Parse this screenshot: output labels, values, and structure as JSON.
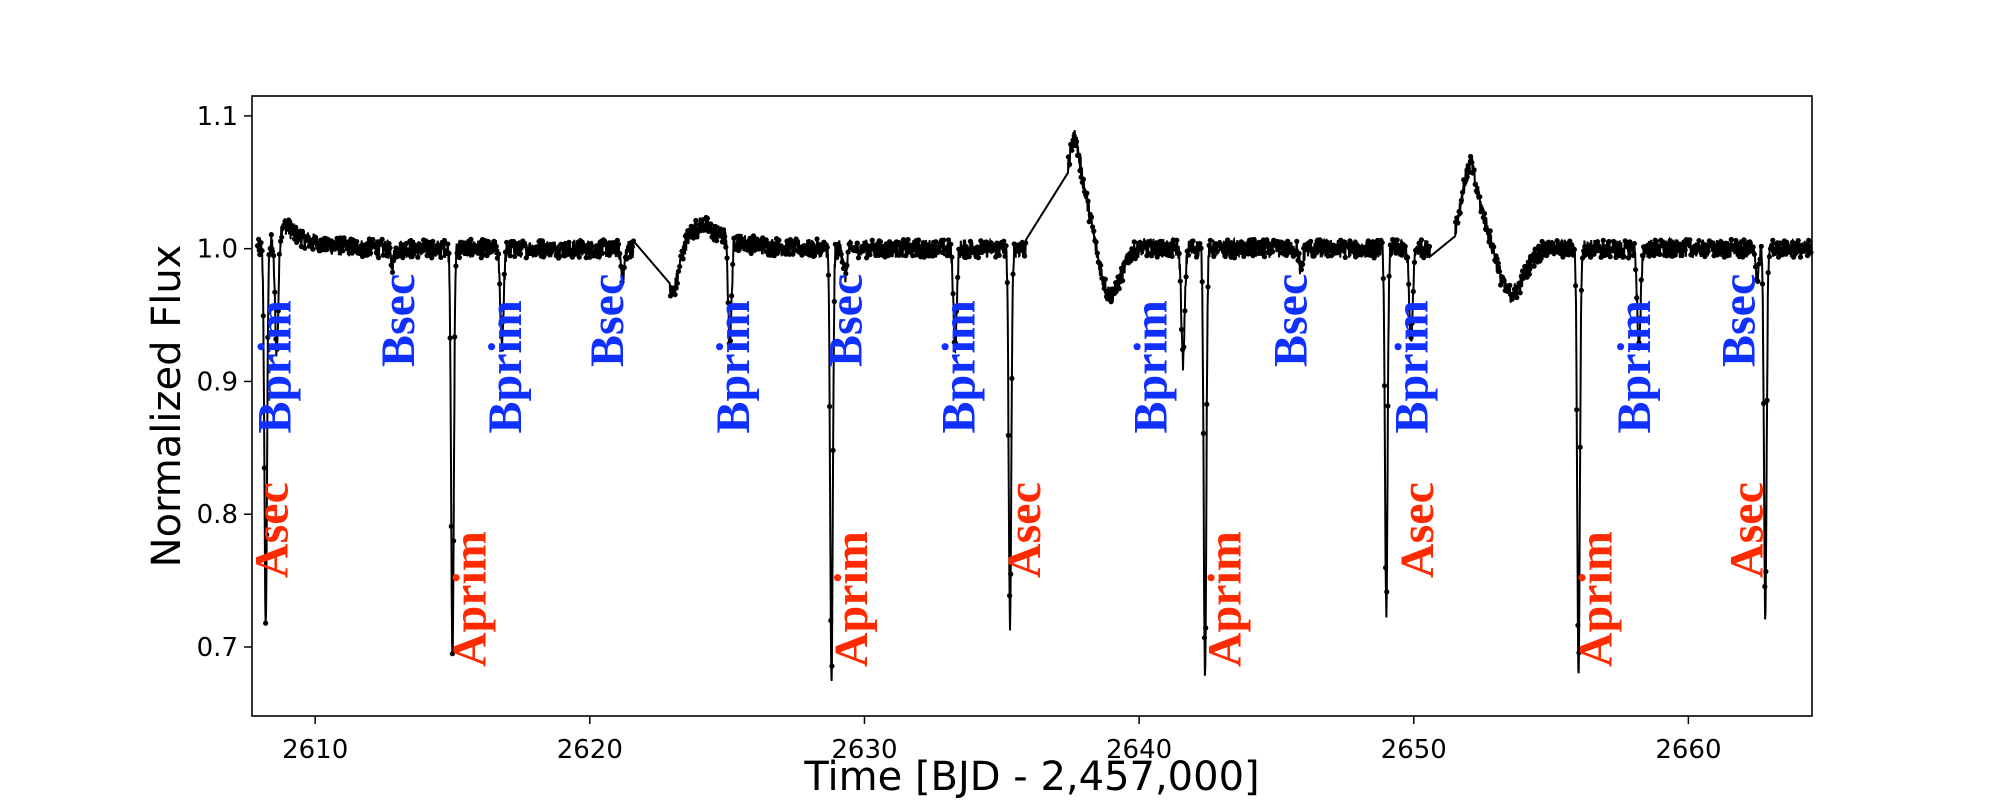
{
  "chart_data": {
    "type": "line",
    "xlabel": "Time [BJD - 2,457,000]",
    "ylabel": "Normalized Flux",
    "xlim": [
      2607.7,
      2664.5
    ],
    "ylim": [
      0.648,
      1.115
    ],
    "xticks": [
      2610,
      2620,
      2630,
      2640,
      2650,
      2660
    ],
    "xtick_labels": [
      "2610",
      "2620",
      "2630",
      "2640",
      "2650",
      "2660"
    ],
    "yticks": [
      0.7,
      0.8,
      0.9,
      1.0,
      1.1
    ],
    "ytick_labels": [
      "0.7",
      "0.8",
      "0.9",
      "1.0",
      "1.1"
    ],
    "grid": false,
    "series_color": "#000000",
    "base_flux": 1.0,
    "noise_amplitude": 0.007,
    "gaps": [
      [
        2621.6,
        2622.9
      ],
      [
        2635.9,
        2637.4
      ],
      [
        2650.6,
        2651.5
      ]
    ],
    "eclipses": [
      {
        "label": "Asec",
        "time": 2608.2,
        "depth": 0.285,
        "color": "#ff2a00"
      },
      {
        "label": "Aprim",
        "time": 2615.0,
        "depth": 0.312,
        "color": "#ff2a00"
      },
      {
        "label": "Aprim",
        "time": 2628.8,
        "depth": 0.33,
        "color": "#ff2a00"
      },
      {
        "label": "Asec",
        "time": 2635.3,
        "depth": 0.282,
        "color": "#ff2a00"
      },
      {
        "label": "Aprim",
        "time": 2642.4,
        "depth": 0.318,
        "color": "#ff2a00"
      },
      {
        "label": "Asec",
        "time": 2649.0,
        "depth": 0.272,
        "color": "#ff2a00"
      },
      {
        "label": "Aprim",
        "time": 2656.0,
        "depth": 0.322,
        "color": "#ff2a00"
      },
      {
        "label": "Asec",
        "time": 2662.8,
        "depth": 0.278,
        "color": "#ff2a00"
      },
      {
        "label": "Bprim",
        "time": 2608.6,
        "depth": 0.088,
        "color": "#1030ff"
      },
      {
        "label": "Bsec",
        "time": 2612.8,
        "depth": 0.012,
        "color": "#1030ff"
      },
      {
        "label": "Bprim",
        "time": 2616.8,
        "depth": 0.07,
        "color": "#1030ff"
      },
      {
        "label": "Bsec",
        "time": 2621.2,
        "depth": 0.022,
        "color": "#1030ff"
      },
      {
        "label": "Bprim",
        "time": 2625.1,
        "depth": 0.078,
        "color": "#1030ff"
      },
      {
        "label": "Bsec",
        "time": 2629.3,
        "depth": 0.02,
        "color": "#1030ff"
      },
      {
        "label": "Bprim",
        "time": 2633.3,
        "depth": 0.075,
        "color": "#1030ff"
      },
      {
        "label": "Bprim",
        "time": 2641.6,
        "depth": 0.085,
        "color": "#1030ff"
      },
      {
        "label": "Bsec",
        "time": 2645.9,
        "depth": 0.018,
        "color": "#1030ff"
      },
      {
        "label": "Bprim",
        "time": 2649.9,
        "depth": 0.073,
        "color": "#1030ff"
      },
      {
        "label": "Bprim",
        "time": 2658.2,
        "depth": 0.076,
        "color": "#1030ff"
      },
      {
        "label": "Bsec",
        "time": 2662.5,
        "depth": 0.02,
        "color": "#1030ff"
      }
    ],
    "flares": [
      {
        "time": 2608.9,
        "amplitude": 0.018,
        "rise": 0.3,
        "decay": 0.8
      },
      {
        "time": 2624.2,
        "amplitude": 0.018,
        "rise": 0.6,
        "decay": 1.0
      },
      {
        "time": 2637.7,
        "amplitude": 0.085,
        "rise": 0.35,
        "decay": 0.6
      },
      {
        "time": 2652.1,
        "amplitude": 0.065,
        "rise": 0.35,
        "decay": 0.6
      }
    ],
    "dips": [
      {
        "time": 2623.0,
        "amplitude": 0.035,
        "width": 0.35
      },
      {
        "time": 2638.9,
        "amplitude": 0.045,
        "width": 0.6
      },
      {
        "time": 2653.5,
        "amplitude": 0.04,
        "width": 0.7
      }
    ],
    "annotations": [
      {
        "text": "Asec",
        "x": 2609.0,
        "y": 0.788,
        "color": "#ff2a00"
      },
      {
        "text": "Aprim",
        "x": 2616.2,
        "y": 0.736,
        "color": "#ff2a00"
      },
      {
        "text": "Aprim",
        "x": 2630.1,
        "y": 0.736,
        "color": "#ff2a00"
      },
      {
        "text": "Asec",
        "x": 2636.4,
        "y": 0.788,
        "color": "#ff2a00"
      },
      {
        "text": "Aprim",
        "x": 2643.7,
        "y": 0.736,
        "color": "#ff2a00"
      },
      {
        "text": "Asec",
        "x": 2650.7,
        "y": 0.788,
        "color": "#ff2a00"
      },
      {
        "text": "Aprim",
        "x": 2657.2,
        "y": 0.736,
        "color": "#ff2a00"
      },
      {
        "text": "Asec",
        "x": 2662.7,
        "y": 0.788,
        "color": "#ff2a00"
      },
      {
        "text": "Bprim",
        "x": 2609.1,
        "y": 0.911,
        "color": "#1030ff"
      },
      {
        "text": "Bsec",
        "x": 2613.6,
        "y": 0.946,
        "color": "#1030ff"
      },
      {
        "text": "Bprim",
        "x": 2617.5,
        "y": 0.911,
        "color": "#1030ff"
      },
      {
        "text": "Bsec",
        "x": 2621.2,
        "y": 0.946,
        "color": "#1030ff"
      },
      {
        "text": "Bprim",
        "x": 2625.8,
        "y": 0.911,
        "color": "#1030ff"
      },
      {
        "text": "Bsec",
        "x": 2629.9,
        "y": 0.946,
        "color": "#1030ff"
      },
      {
        "text": "Bprim",
        "x": 2634.0,
        "y": 0.911,
        "color": "#1030ff"
      },
      {
        "text": "Bprim",
        "x": 2641.0,
        "y": 0.911,
        "color": "#1030ff"
      },
      {
        "text": "Bsec",
        "x": 2646.1,
        "y": 0.946,
        "color": "#1030ff"
      },
      {
        "text": "Bprim",
        "x": 2650.5,
        "y": 0.911,
        "color": "#1030ff"
      },
      {
        "text": "Bprim",
        "x": 2658.6,
        "y": 0.911,
        "color": "#1030ff"
      },
      {
        "text": "Bsec",
        "x": 2662.4,
        "y": 0.946,
        "color": "#1030ff"
      }
    ]
  }
}
